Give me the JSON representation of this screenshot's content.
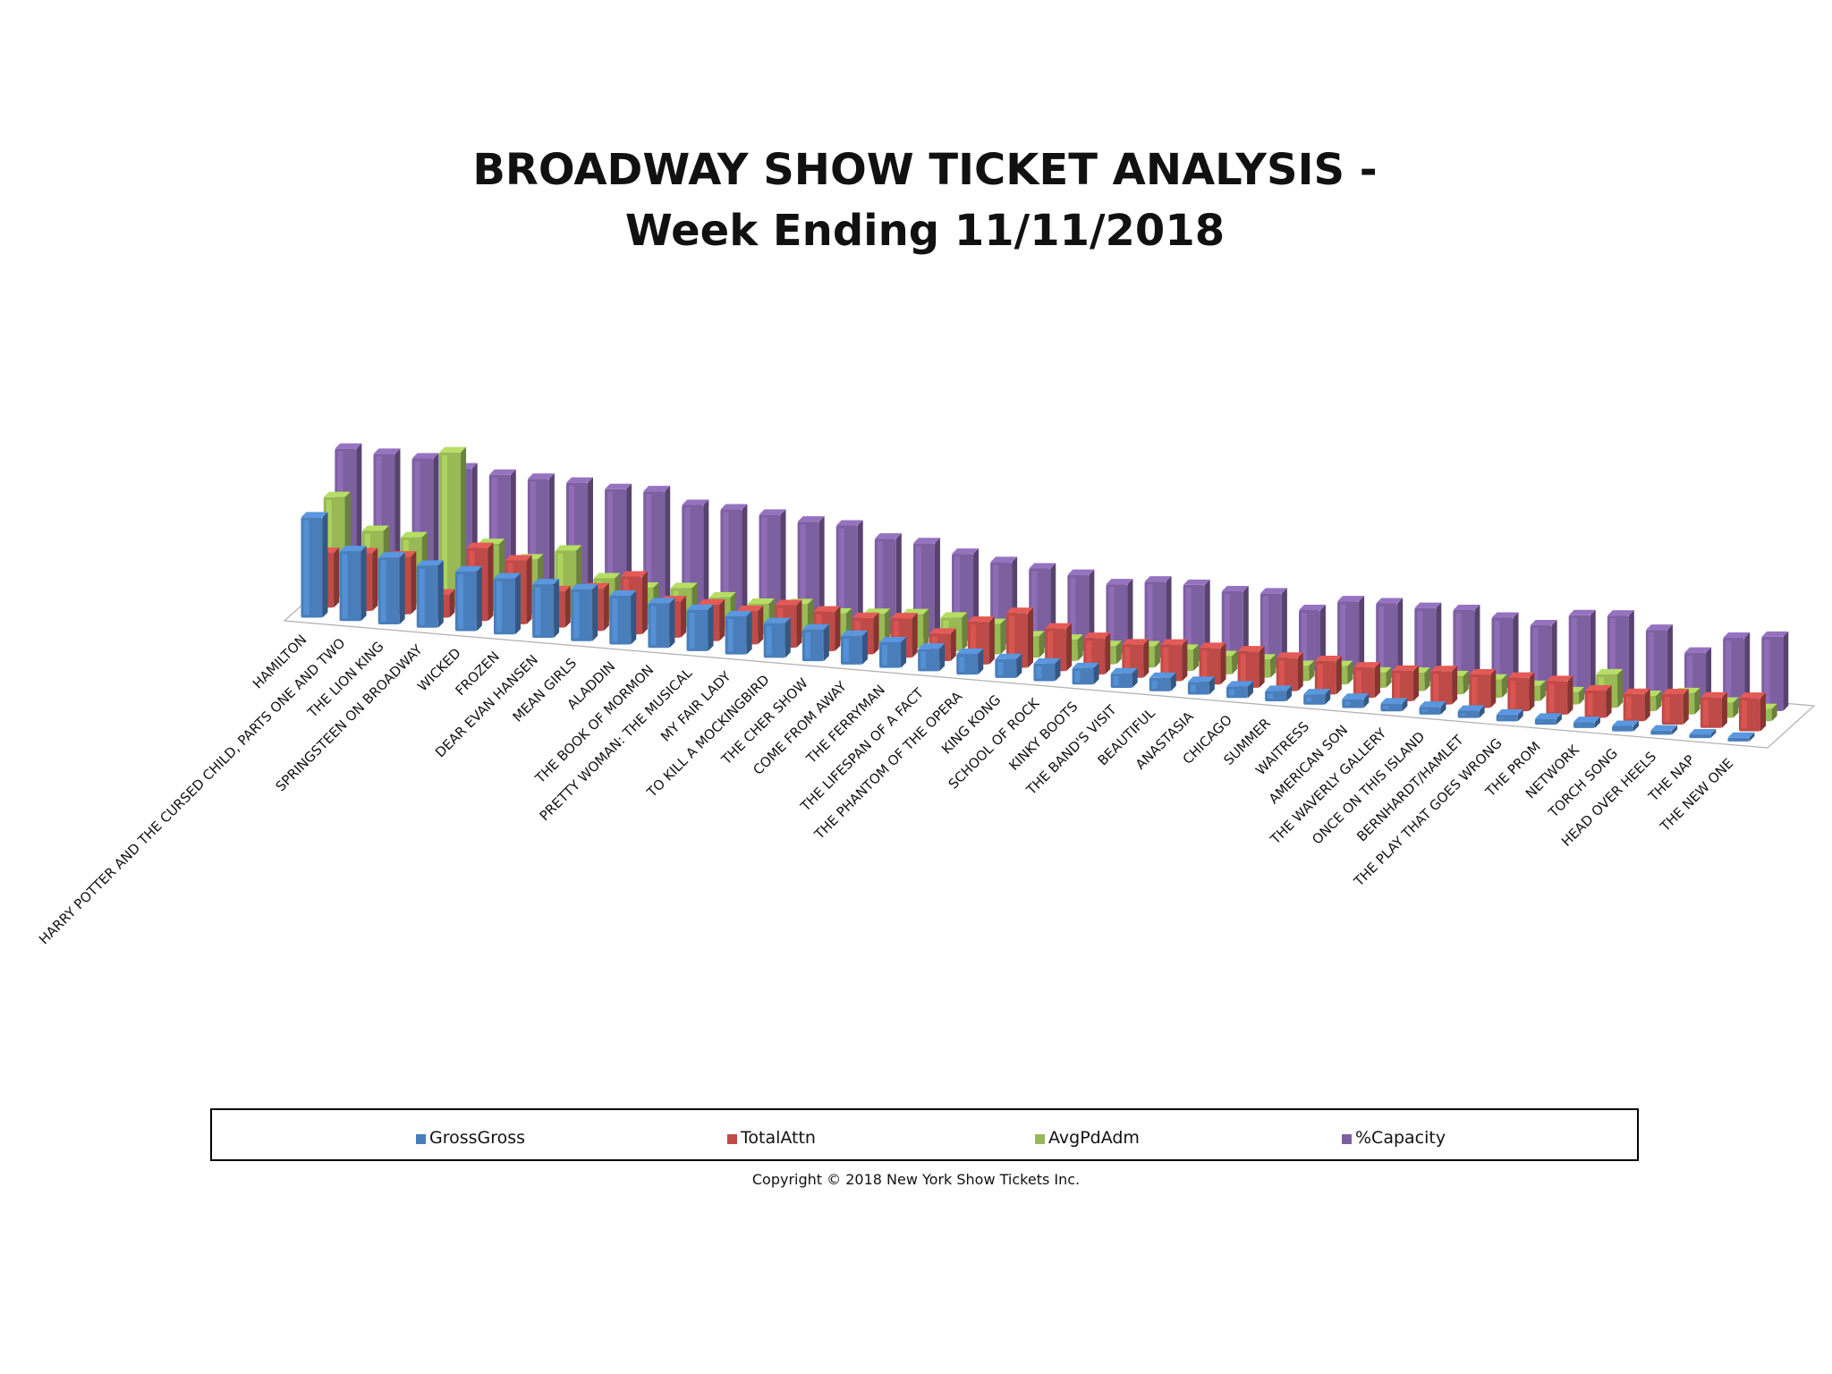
{
  "chart_data": {
    "type": "bar",
    "title_lines": [
      "BROADWAY  SHOW TICKET ANALYSIS -",
      "Week Ending 11/11/2018"
    ],
    "copyright": "Copyright © 2018 New York Show Tickets Inc.",
    "legend_position": "bottom",
    "categories": [
      "HAMILTON",
      "HARRY POTTER AND THE CURSED CHILD, PARTS ONE AND TWO",
      "THE LION KING",
      "SPRINGSTEEN ON BROADWAY",
      "WICKED",
      "FROZEN",
      "DEAR EVAN HANSEN",
      "MEAN GIRLS",
      "ALADDIN",
      "THE BOOK OF MORMON",
      "PRETTY WOMAN: THE MUSICAL",
      "MY FAIR LADY",
      "TO KILL A MOCKINGBIRD",
      "THE CHER SHOW",
      "COME FROM AWAY",
      "THE FERRYMAN",
      "THE LIFESPAN OF A FACT",
      "THE PHANTOM OF THE OPERA",
      "KING KONG",
      "SCHOOL OF ROCK",
      "KINKY BOOTS",
      "THE BAND'S  VISIT",
      "BEAUTIFUL",
      "ANASTASIA",
      "CHICAGO",
      "SUMMER",
      "WAITRESS",
      "AMERICAN SON",
      "THE WAVERLY GALLERY",
      "ONCE ON THIS ISLAND",
      "BERNHARDT/HAMLET",
      "THE PLAY THAT GOES WRONG",
      "THE PROM",
      "NETWORK",
      "TORCH SONG",
      "HEAD OVER HEELS",
      "THE NAP",
      "THE NEW ONE"
    ],
    "series": [
      {
        "name": "GrossGross",
        "color": "#4a7ebb",
        "values": [
          165,
          115,
          110,
          102,
          98,
          92,
          88,
          85,
          80,
          73,
          68,
          63,
          57,
          52,
          47,
          42,
          37,
          34,
          31,
          29,
          27,
          24,
          22,
          21,
          19,
          17,
          17,
          15,
          13,
          13,
          12,
          11,
          10,
          10,
          9,
          7,
          6,
          6
        ]
      },
      {
        "name": "TotalAttn",
        "color": "#be4b48",
        "values": [
          90,
          95,
          95,
          38,
          120,
          105,
          60,
          70,
          95,
          60,
          60,
          55,
          70,
          65,
          60,
          65,
          45,
          70,
          90,
          70,
          60,
          55,
          60,
          60,
          60,
          55,
          55,
          50,
          50,
          55,
          55,
          55,
          55,
          45,
          45,
          50,
          50,
          55
        ]
      },
      {
        "name": "AvgPdAdm",
        "color": "#98b954",
        "values": [
          165,
          115,
          110,
          255,
          110,
          90,
          110,
          70,
          60,
          65,
          55,
          50,
          55,
          45,
          50,
          55,
          55,
          50,
          35,
          35,
          30,
          35,
          35,
          30,
          30,
          25,
          30,
          25,
          30,
          30,
          30,
          25,
          20,
          55,
          25,
          35,
          25,
          20
        ]
      },
      {
        "name": "%Capacity",
        "color": "#7d60a0",
        "values": [
          228,
          225,
          223,
          212,
          207,
          206,
          205,
          200,
          202,
          185,
          183,
          180,
          174,
          173,
          157,
          155,
          143,
          135,
          130,
          125,
          115,
          125,
          125,
          120,
          122,
          100,
          120,
          122,
          120,
          122,
          115,
          108,
          130,
          135,
          117,
          85,
          115,
          122
        ]
      }
    ],
    "ylim": [
      0,
      260
    ]
  }
}
